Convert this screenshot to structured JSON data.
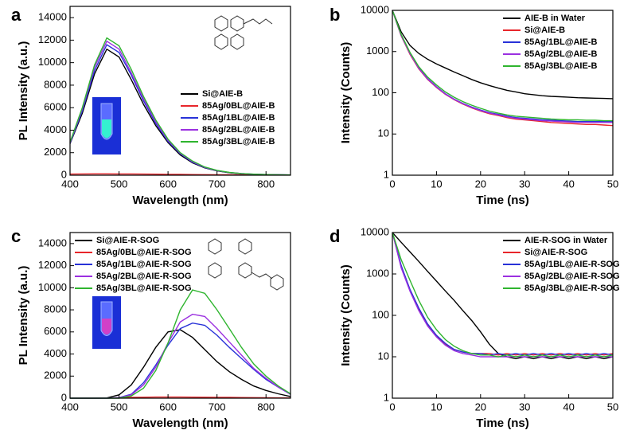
{
  "chart_data": [
    {
      "type": "line",
      "panel_label": "a",
      "x_label": "Wavelength (nm)",
      "y_label": "PL Intensity (a.u.)",
      "legend": "lower right",
      "x": [
        400,
        425,
        450,
        475,
        500,
        525,
        550,
        575,
        600,
        625,
        650,
        675,
        700,
        725,
        750,
        775,
        800,
        825,
        850
      ],
      "xlim": [
        400,
        850
      ],
      "xticks": [
        400,
        500,
        600,
        700,
        800
      ],
      "ylim": [
        0,
        15000
      ],
      "yticks": [
        0,
        2000,
        4000,
        6000,
        8000,
        10000,
        12000,
        14000
      ],
      "series": [
        {
          "name": "Si@AIE-B",
          "color": "#000000",
          "values": [
            2800,
            5500,
            9000,
            11200,
            10500,
            8500,
            6300,
            4400,
            2900,
            1800,
            1100,
            650,
            380,
            220,
            130,
            80,
            50,
            30,
            20
          ]
        },
        {
          "name": "85Ag/0BL@AIE-B",
          "color": "#e8262b",
          "values": [
            100,
            110,
            120,
            120,
            115,
            110,
            100,
            90,
            80,
            70,
            60,
            50,
            40,
            35,
            30,
            25,
            20,
            20,
            20
          ]
        },
        {
          "name": "85Ag/1BL@AIE-B",
          "color": "#2832d8",
          "values": [
            2850,
            5700,
            9300,
            11600,
            10900,
            8900,
            6600,
            4600,
            3000,
            1900,
            1150,
            680,
            400,
            230,
            140,
            85,
            55,
            35,
            20
          ]
        },
        {
          "name": "85Ag/2BL@AIE-B",
          "color": "#9b30e0",
          "values": [
            2900,
            5900,
            9600,
            11900,
            11200,
            9100,
            6800,
            4750,
            3100,
            1950,
            1200,
            700,
            410,
            240,
            145,
            90,
            55,
            35,
            20
          ]
        },
        {
          "name": "85Ag/3BL@AIE-B",
          "color": "#2fb52f",
          "values": [
            2950,
            6000,
            9800,
            12200,
            11500,
            9400,
            7000,
            4900,
            3200,
            2000,
            1250,
            730,
            430,
            250,
            150,
            95,
            60,
            38,
            22
          ]
        }
      ]
    },
    {
      "type": "line",
      "panel_label": "b",
      "x_label": "Time (ns)",
      "y_label": "Intensity (Counts)",
      "legend": "upper right",
      "log_y": true,
      "x": [
        0,
        2,
        4,
        6,
        8,
        10,
        12,
        14,
        16,
        18,
        20,
        22,
        24,
        26,
        28,
        30,
        32,
        34,
        36,
        38,
        40,
        42,
        44,
        46,
        48,
        50
      ],
      "xlim": [
        0,
        50
      ],
      "xticks": [
        0,
        10,
        20,
        30,
        40,
        50
      ],
      "ylim": [
        1,
        10000
      ],
      "yticks": [
        1,
        10,
        100,
        1000,
        10000
      ],
      "series": [
        {
          "name": "AIE-B in Water",
          "color": "#000000",
          "values": [
            10000,
            3000,
            1400,
            900,
            650,
            500,
            400,
            320,
            260,
            210,
            175,
            150,
            130,
            115,
            105,
            95,
            90,
            85,
            82,
            80,
            78,
            76,
            75,
            74,
            73,
            72
          ]
        },
        {
          "name": "Si@AIE-B",
          "color": "#e8262b",
          "values": [
            10000,
            2400,
            850,
            380,
            210,
            135,
            92,
            68,
            53,
            43,
            36,
            31,
            28,
            25,
            23,
            22,
            21,
            20,
            19,
            18.5,
            18,
            17.5,
            17,
            17,
            16.5,
            16
          ]
        },
        {
          "name": "85Ag/1BL@AIE-B",
          "color": "#2832d8",
          "values": [
            10000,
            2500,
            900,
            400,
            220,
            140,
            95,
            70,
            55,
            45,
            38,
            33,
            30,
            27,
            25,
            24,
            23,
            22,
            21.5,
            21,
            20.5,
            20,
            20,
            20,
            20,
            20
          ]
        },
        {
          "name": "85Ag/2BL@AIE-B",
          "color": "#9b30e0",
          "values": [
            10000,
            2450,
            880,
            390,
            215,
            138,
            93,
            69,
            54,
            44,
            37,
            32,
            29,
            26,
            24,
            23,
            22,
            21,
            20.5,
            20,
            19.5,
            19,
            19,
            19,
            19,
            19
          ]
        },
        {
          "name": "85Ag/3BL@AIE-B",
          "color": "#2fb52f",
          "values": [
            10000,
            2600,
            950,
            430,
            240,
            155,
            105,
            78,
            61,
            50,
            42,
            36,
            32,
            29,
            27,
            26,
            25,
            24,
            23,
            22.5,
            22,
            22,
            21.5,
            21.5,
            21,
            21
          ]
        }
      ]
    },
    {
      "type": "line",
      "panel_label": "c",
      "x_label": "Wavelength (nm)",
      "y_label": "PL Intensity (a.u.)",
      "legend": "upper left",
      "x": [
        400,
        425,
        450,
        475,
        500,
        525,
        550,
        575,
        600,
        625,
        650,
        675,
        700,
        725,
        750,
        775,
        800,
        825,
        850
      ],
      "xlim": [
        400,
        850
      ],
      "xticks": [
        400,
        500,
        600,
        700,
        800
      ],
      "ylim": [
        0,
        15000
      ],
      "yticks": [
        0,
        2000,
        4000,
        6000,
        8000,
        10000,
        12000,
        14000
      ],
      "series": [
        {
          "name": "Si@AIE-R-SOG",
          "color": "#000000",
          "values": [
            0,
            0,
            0,
            20,
            300,
            1200,
            2800,
            4600,
            6000,
            6200,
            5500,
            4400,
            3300,
            2400,
            1700,
            1100,
            700,
            400,
            150
          ]
        },
        {
          "name": "85Ag/0BL@AIE-R-SOG",
          "color": "#e8262b",
          "values": [
            0,
            0,
            0,
            10,
            40,
            70,
            90,
            100,
            100,
            100,
            95,
            90,
            80,
            70,
            60,
            50,
            40,
            30,
            20
          ]
        },
        {
          "name": "85Ag/1BL@AIE-R-SOG",
          "color": "#2832d8",
          "values": [
            0,
            0,
            0,
            0,
            50,
            350,
            1400,
            3000,
            4800,
            6300,
            6800,
            6600,
            5700,
            4600,
            3600,
            2600,
            1700,
            1000,
            350
          ]
        },
        {
          "name": "85Ag/2BL@AIE-R-SOG",
          "color": "#9b30e0",
          "values": [
            0,
            0,
            0,
            0,
            40,
            300,
            1200,
            2800,
            5000,
            6900,
            7600,
            7400,
            6300,
            5100,
            3900,
            2700,
            1800,
            1000,
            350
          ]
        },
        {
          "name": "85Ag/3BL@AIE-R-SOG",
          "color": "#2fb52f",
          "values": [
            0,
            0,
            0,
            0,
            0,
            200,
            900,
            2500,
            5000,
            8000,
            9800,
            9500,
            8000,
            6300,
            4600,
            3100,
            2000,
            1100,
            400
          ]
        }
      ]
    },
    {
      "type": "line",
      "panel_label": "d",
      "x_label": "Time (ns)",
      "y_label": "Intensity (Counts)",
      "legend": "upper right",
      "log_y": true,
      "x": [
        0,
        2,
        4,
        6,
        8,
        10,
        12,
        14,
        16,
        18,
        20,
        22,
        24,
        26,
        28,
        30,
        32,
        34,
        36,
        38,
        40,
        42,
        44,
        46,
        48,
        50
      ],
      "xlim": [
        0,
        50
      ],
      "xticks": [
        0,
        10,
        20,
        30,
        40,
        50
      ],
      "ylim": [
        1,
        10000
      ],
      "yticks": [
        1,
        10,
        100,
        1000,
        10000
      ],
      "series": [
        {
          "name": "AIE-R-SOG in Water",
          "color": "#000000",
          "values": [
            10000,
            5800,
            3400,
            2000,
            1150,
            670,
            390,
            230,
            130,
            75,
            40,
            20,
            12,
            10,
            9,
            10,
            9,
            10,
            9,
            10,
            9,
            10,
            9,
            10,
            9,
            10
          ]
        },
        {
          "name": "Si@AIE-R-SOG",
          "color": "#e8262b",
          "values": [
            10000,
            1500,
            400,
            140,
            60,
            32,
            20,
            15,
            13,
            12,
            12,
            12,
            11,
            12,
            11,
            12,
            11,
            12,
            11,
            12,
            11,
            12,
            11,
            12,
            11,
            12
          ]
        },
        {
          "name": "85Ag/1BL@AIE-R-SOG",
          "color": "#2832d8",
          "values": [
            10000,
            1600,
            420,
            150,
            62,
            33,
            21,
            15,
            13,
            12,
            12,
            11,
            12,
            11,
            12,
            11,
            12,
            11,
            12,
            11,
            12,
            11,
            12,
            11,
            12,
            11
          ]
        },
        {
          "name": "85Ag/2BL@AIE-R-SOG",
          "color": "#9b30e0",
          "values": [
            10000,
            1400,
            380,
            130,
            55,
            30,
            19,
            14,
            12,
            11,
            10,
            10,
            10,
            10,
            10,
            10,
            10,
            10,
            10,
            10,
            10,
            10,
            10,
            10,
            10,
            10
          ]
        },
        {
          "name": "85Ag/3BL@AIE-R-SOG",
          "color": "#2fb52f",
          "values": [
            10000,
            2200,
            700,
            230,
            90,
            45,
            26,
            18,
            14,
            12,
            11,
            11,
            10,
            11,
            10,
            11,
            10,
            11,
            10,
            11,
            10,
            11,
            10,
            11,
            10,
            11
          ]
        }
      ]
    }
  ]
}
